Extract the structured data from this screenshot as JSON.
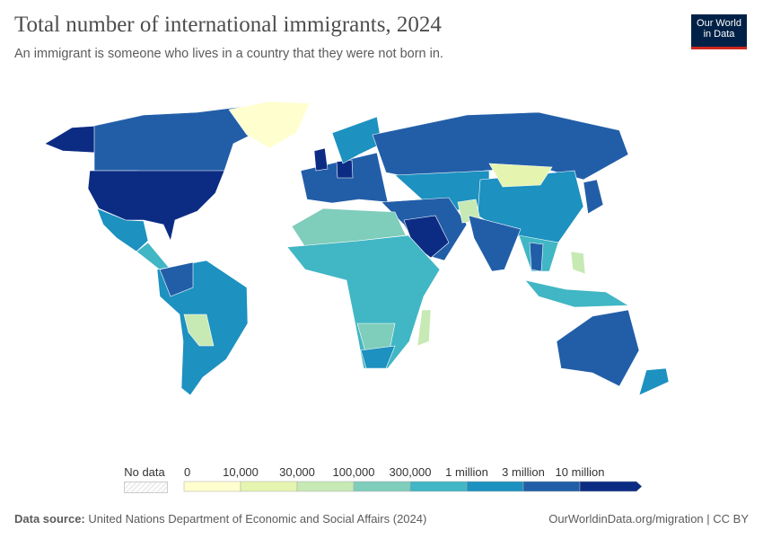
{
  "header": {
    "title": "Total number of international immigrants, 2024",
    "subtitle": "An immigrant is someone who lives in a country that they were not born in."
  },
  "logo": {
    "line1": "Our World",
    "line2": "in Data",
    "bg": "#002147",
    "accent": "#ce261e"
  },
  "legend": {
    "no_data_label": "No data",
    "thresholds": [
      "0",
      "10,000",
      "30,000",
      "100,000",
      "300,000",
      "1 million",
      "3 million",
      "10 million"
    ],
    "colors": [
      "#fefecf",
      "#e5f5b0",
      "#c7e9b4",
      "#7fcdbb",
      "#41b6c4",
      "#1d91c0",
      "#225ea8",
      "#0c2c84"
    ]
  },
  "footer": {
    "source_label": "Data source:",
    "source": "United Nations Department of Economic and Social Affairs (2024)",
    "link": "OurWorldinData.org/migration | CC BY"
  }
}
